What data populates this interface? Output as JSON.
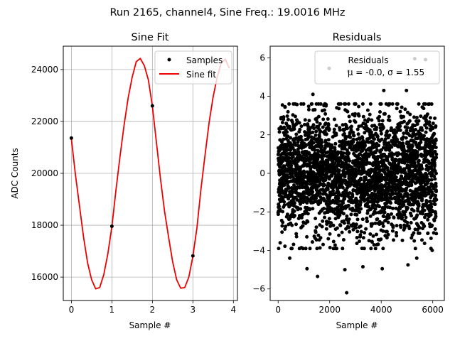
{
  "figure": {
    "suptitle": "Run 2165, channel4, Sine Freq.: 19.0016 MHz"
  },
  "chart_data": [
    {
      "type": "line",
      "title": "Sine Fit",
      "xlabel": "Sample #",
      "ylabel": "ADC Counts",
      "xlim": [
        -0.2,
        4.1
      ],
      "ylim": [
        15100,
        24900
      ],
      "xticks": [
        0,
        1,
        2,
        3,
        4
      ],
      "yticks": [
        16000,
        18000,
        20000,
        22000,
        24000
      ],
      "grid": true,
      "legend_position": "top-right",
      "sine_model": {
        "amplitude": 4420,
        "offset": 20010,
        "period_samples": 1.04,
        "phase_rad": 2.77
      },
      "series": [
        {
          "name": "Samples",
          "style": "points",
          "color": "#000000",
          "x": [
            0,
            1,
            2,
            3
          ],
          "y": [
            21360,
            17960,
            22600,
            16820
          ]
        },
        {
          "name": "Sine fit",
          "style": "line",
          "color": "#ee0000",
          "x": [
            0,
            0.1,
            0.2,
            0.3,
            0.4,
            0.5,
            0.6,
            0.7,
            0.8,
            0.9,
            1.0,
            1.1,
            1.2,
            1.3,
            1.4,
            1.5,
            1.6,
            1.7,
            1.8,
            1.9,
            2.0,
            2.1,
            2.2,
            2.3,
            2.4,
            2.5,
            2.6,
            2.7,
            2.8,
            2.9,
            3.0,
            3.1,
            3.2,
            3.3,
            3.4,
            3.5,
            3.6,
            3.7,
            3.8,
            3.9
          ],
          "y": [
            21330,
            19950,
            18750,
            17550,
            16550,
            15900,
            15550,
            15600,
            16100,
            16900,
            17950,
            19350,
            20650,
            21850,
            22900,
            23700,
            24300,
            24430,
            24150,
            23600,
            22600,
            21200,
            19800,
            18550,
            17550,
            16600,
            15900,
            15570,
            15600,
            16000,
            16800,
            17900,
            19400,
            20700,
            21950,
            22950,
            23700,
            24250,
            24400,
            24050
          ]
        }
      ]
    },
    {
      "type": "scatter",
      "title": "Residuals",
      "xlabel": "Sample #",
      "ylabel": "",
      "xlim": [
        -310,
        6450
      ],
      "ylim": [
        -6.6,
        6.6
      ],
      "xticks": [
        0,
        2000,
        4000,
        6000
      ],
      "yticks": [
        -6,
        -4,
        -2,
        0,
        2,
        4,
        6
      ],
      "grid": false,
      "legend_position": "top-right",
      "n_points": 6144,
      "mean": -0.0,
      "std": 1.55,
      "legend_label": "Residuals",
      "legend_stats_text": "μ = -0.0, σ = 1.55",
      "outliers": [
        {
          "x": 1350,
          "y": 4.1
        },
        {
          "x": 1980,
          "y": 5.45
        },
        {
          "x": 2730,
          "y": 5.3
        },
        {
          "x": 5300,
          "y": 5.95
        },
        {
          "x": 5720,
          "y": 5.9
        },
        {
          "x": 1530,
          "y": -5.35
        },
        {
          "x": 2660,
          "y": -6.2
        },
        {
          "x": 2590,
          "y": -5.0
        },
        {
          "x": 1120,
          "y": -4.95
        },
        {
          "x": 4040,
          "y": -4.95
        },
        {
          "x": 5040,
          "y": -4.75
        },
        {
          "x": 5380,
          "y": -4.4
        },
        {
          "x": 450,
          "y": -4.4
        },
        {
          "x": 3290,
          "y": -4.85
        },
        {
          "x": 4980,
          "y": 4.3
        },
        {
          "x": 4100,
          "y": 4.3
        },
        {
          "x": 5980,
          "y": -4.0
        },
        {
          "x": 20,
          "y": -3.9
        }
      ]
    }
  ]
}
